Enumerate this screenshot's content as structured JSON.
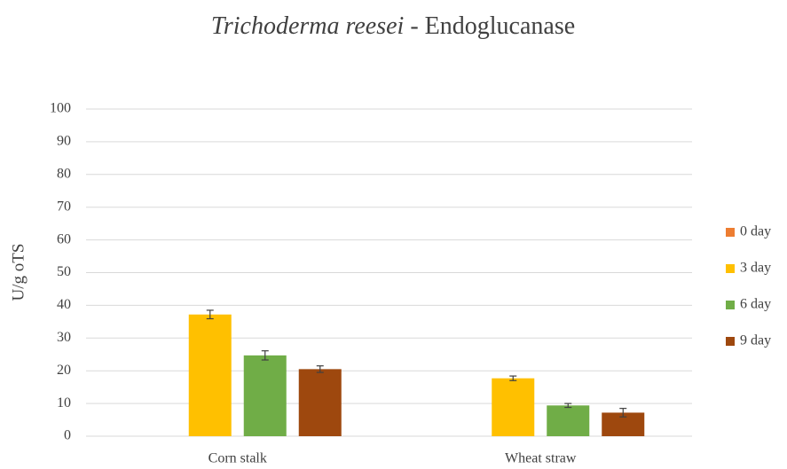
{
  "chart_data": {
    "type": "bar",
    "title_parts": [
      "Trichoderma reesei",
      " - Endoglucanase"
    ],
    "y_label": "U/g oTS",
    "categories": [
      "Corn stalk",
      "Wheat straw"
    ],
    "series": [
      {
        "name": "0 day",
        "color": "#ed7d31",
        "values": [
          0,
          0
        ]
      },
      {
        "name": "3 day",
        "color": "#ffc000",
        "values": [
          37.2,
          17.7
        ],
        "errors": [
          1.3,
          0.7
        ]
      },
      {
        "name": "6 day",
        "color": "#70ad47",
        "values": [
          24.7,
          9.4
        ],
        "errors": [
          1.4,
          0.6
        ]
      },
      {
        "name": "9 day",
        "color": "#9e480e",
        "values": [
          20.5,
          7.2
        ],
        "errors": [
          1.0,
          1.3
        ]
      }
    ],
    "ylim": [
      0,
      100
    ],
    "yticks": [
      0,
      10,
      20,
      30,
      40,
      50,
      60,
      70,
      80,
      90,
      100
    ],
    "grid": true,
    "legend": "right"
  }
}
